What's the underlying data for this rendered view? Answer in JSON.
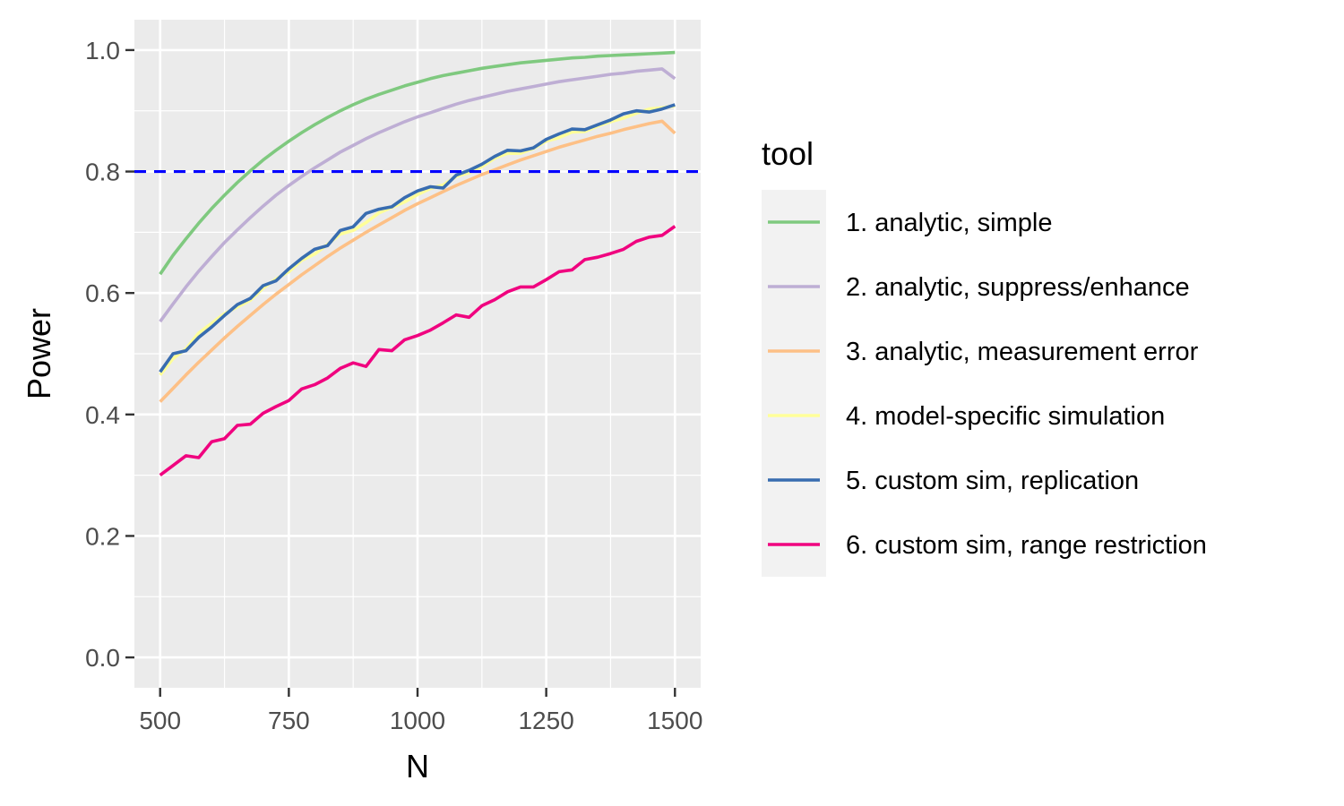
{
  "chart_data": {
    "type": "line",
    "xlabel": "N",
    "ylabel": "Power",
    "xlim": [
      450,
      1550
    ],
    "ylim": [
      -0.05,
      1.05
    ],
    "x_ticks": [
      500,
      750,
      1000,
      1250,
      1500
    ],
    "x_tick_labels": [
      "500",
      "750",
      "1000",
      "1250",
      "1500"
    ],
    "y_ticks": [
      0.0,
      0.2,
      0.4,
      0.6,
      0.8,
      1.0
    ],
    "y_tick_labels": [
      "0.0",
      "0.2",
      "0.4",
      "0.6",
      "0.8",
      "1.0"
    ],
    "grid": true,
    "panel_background": "#ebebeb",
    "reference_line": {
      "y": 0.8,
      "style": "dashed",
      "color": "#0000ff"
    },
    "legend": {
      "title": "tool",
      "placement": "right",
      "labels": [
        "1. analytic, simple",
        "2. analytic, suppress/enhance",
        "3. analytic, measurement error",
        "4. model-specific simulation",
        "5. custom sim, replication",
        "6. custom sim, range restriction"
      ]
    },
    "x": [
      500,
      525,
      550,
      575,
      600,
      625,
      650,
      675,
      700,
      725,
      750,
      775,
      800,
      825,
      850,
      875,
      900,
      925,
      950,
      975,
      1000,
      1025,
      1050,
      1075,
      1100,
      1125,
      1150,
      1175,
      1200,
      1225,
      1250,
      1275,
      1300,
      1325,
      1350,
      1375,
      1400,
      1425,
      1450,
      1475,
      1500
    ],
    "series": [
      {
        "name": "1. analytic, simple",
        "color": "#7fc97f",
        "values": [
          0.631,
          0.662,
          0.689,
          0.715,
          0.739,
          0.761,
          0.782,
          0.801,
          0.819,
          0.835,
          0.85,
          0.864,
          0.877,
          0.889,
          0.9,
          0.91,
          0.919,
          0.927,
          0.934,
          0.941,
          0.947,
          0.953,
          0.958,
          0.962,
          0.966,
          0.97,
          0.973,
          0.976,
          0.979,
          0.981,
          0.983,
          0.985,
          0.987,
          0.988,
          0.99,
          0.991,
          0.992,
          0.993,
          0.994,
          0.995,
          0.996
        ]
      },
      {
        "name": "2. analytic, suppress/enhance",
        "color": "#beaed4",
        "values": [
          0.553,
          0.582,
          0.61,
          0.636,
          0.66,
          0.683,
          0.704,
          0.724,
          0.743,
          0.761,
          0.777,
          0.792,
          0.806,
          0.819,
          0.832,
          0.843,
          0.854,
          0.864,
          0.873,
          0.882,
          0.89,
          0.897,
          0.904,
          0.911,
          0.917,
          0.922,
          0.927,
          0.932,
          0.936,
          0.94,
          0.944,
          0.948,
          0.951,
          0.954,
          0.957,
          0.96,
          0.962,
          0.965,
          0.967,
          0.969,
          0.953
        ]
      },
      {
        "name": "3. analytic, measurement error",
        "color": "#fdc086",
        "values": [
          0.421,
          0.443,
          0.465,
          0.486,
          0.506,
          0.526,
          0.545,
          0.563,
          0.581,
          0.598,
          0.614,
          0.63,
          0.645,
          0.66,
          0.674,
          0.687,
          0.7,
          0.712,
          0.724,
          0.736,
          0.747,
          0.757,
          0.767,
          0.777,
          0.786,
          0.795,
          0.803,
          0.811,
          0.819,
          0.826,
          0.833,
          0.84,
          0.846,
          0.852,
          0.858,
          0.863,
          0.869,
          0.874,
          0.879,
          0.883,
          0.863
        ]
      },
      {
        "name": "4. model-specific simulation",
        "color": "#ffff99",
        "values": [
          0.465,
          0.492,
          0.508,
          0.534,
          0.55,
          0.566,
          0.577,
          0.588,
          0.608,
          0.623,
          0.635,
          0.654,
          0.664,
          0.68,
          0.697,
          0.703,
          0.716,
          0.732,
          0.741,
          0.75,
          0.762,
          0.772,
          0.778,
          0.792,
          0.798,
          0.808,
          0.822,
          0.83,
          0.83,
          0.838,
          0.85,
          0.856,
          0.865,
          0.866,
          0.875,
          0.882,
          0.888,
          0.896,
          0.903,
          0.905,
          0.908
        ]
      },
      {
        "name": "5. custom sim, replication",
        "color": "#386cb0",
        "values": [
          0.47,
          0.5,
          0.505,
          0.527,
          0.544,
          0.563,
          0.581,
          0.591,
          0.612,
          0.62,
          0.64,
          0.657,
          0.672,
          0.678,
          0.703,
          0.709,
          0.731,
          0.738,
          0.742,
          0.757,
          0.768,
          0.775,
          0.773,
          0.794,
          0.802,
          0.812,
          0.825,
          0.835,
          0.834,
          0.839,
          0.853,
          0.862,
          0.87,
          0.869,
          0.877,
          0.885,
          0.895,
          0.9,
          0.898,
          0.903,
          0.91
        ]
      },
      {
        "name": "6. custom sim, range restriction",
        "color": "#f0027f",
        "values": [
          0.3,
          0.316,
          0.332,
          0.329,
          0.355,
          0.36,
          0.382,
          0.384,
          0.402,
          0.413,
          0.423,
          0.442,
          0.449,
          0.46,
          0.476,
          0.485,
          0.479,
          0.507,
          0.505,
          0.523,
          0.53,
          0.539,
          0.551,
          0.564,
          0.56,
          0.579,
          0.589,
          0.602,
          0.61,
          0.61,
          0.622,
          0.635,
          0.638,
          0.655,
          0.659,
          0.665,
          0.672,
          0.685,
          0.692,
          0.695,
          0.71
        ]
      }
    ]
  }
}
